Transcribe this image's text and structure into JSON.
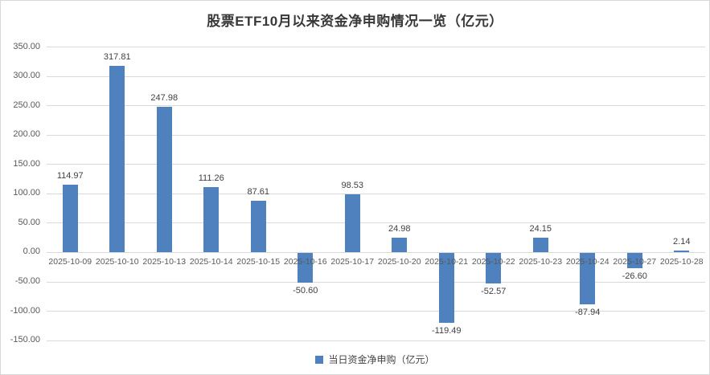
{
  "title": "股票ETF10月以来资金净申购情况一览（亿元）",
  "legend": {
    "label": "当日资金净申购（亿元）",
    "marker_color": "#4E81BD"
  },
  "colors": {
    "bar": "#4E81BD",
    "gridline": "#D9D9D9",
    "axis_text": "#595959",
    "value_text": "#404040",
    "title_text": "#383838",
    "border": "#D8D8D8"
  },
  "chart_data": {
    "type": "bar",
    "title": "股票ETF10月以来资金净申购情况一览（亿元）",
    "series_name": "当日资金净申购（亿元）",
    "categories": [
      "2025-10-09",
      "2025-10-10",
      "2025-10-13",
      "2025-10-14",
      "2025-10-15",
      "2025-10-16",
      "2025-10-17",
      "2025-10-20",
      "2025-10-21",
      "2025-10-22",
      "2025-10-23",
      "2025-10-24",
      "2025-10-27",
      "2025-10-28"
    ],
    "values": [
      114.97,
      317.81,
      247.98,
      111.26,
      87.61,
      -50.6,
      98.53,
      24.98,
      -119.49,
      -52.57,
      24.15,
      -87.94,
      -26.6,
      2.14
    ],
    "value_labels": [
      "114.97",
      "317.81",
      "247.98",
      "111.26",
      "87.61",
      "-50.60",
      "98.53",
      "24.98",
      "-119.49",
      "-52.57",
      "24.15",
      "-87.94",
      "-26.60",
      "2.14"
    ],
    "xlabel": "",
    "ylabel": "",
    "ylim": [
      -150,
      350
    ],
    "y_ticks": [
      350,
      300,
      250,
      200,
      150,
      100,
      50,
      0,
      -50,
      -100,
      -150
    ],
    "y_tick_labels": [
      "350.00",
      "300.00",
      "250.00",
      "200.00",
      "150.00",
      "100.00",
      "50.00",
      "0.00",
      "-50.00",
      "-100.00",
      "-150.00"
    ],
    "grid": true,
    "legend_position": "bottom",
    "bar_color": "#4E81BD"
  }
}
